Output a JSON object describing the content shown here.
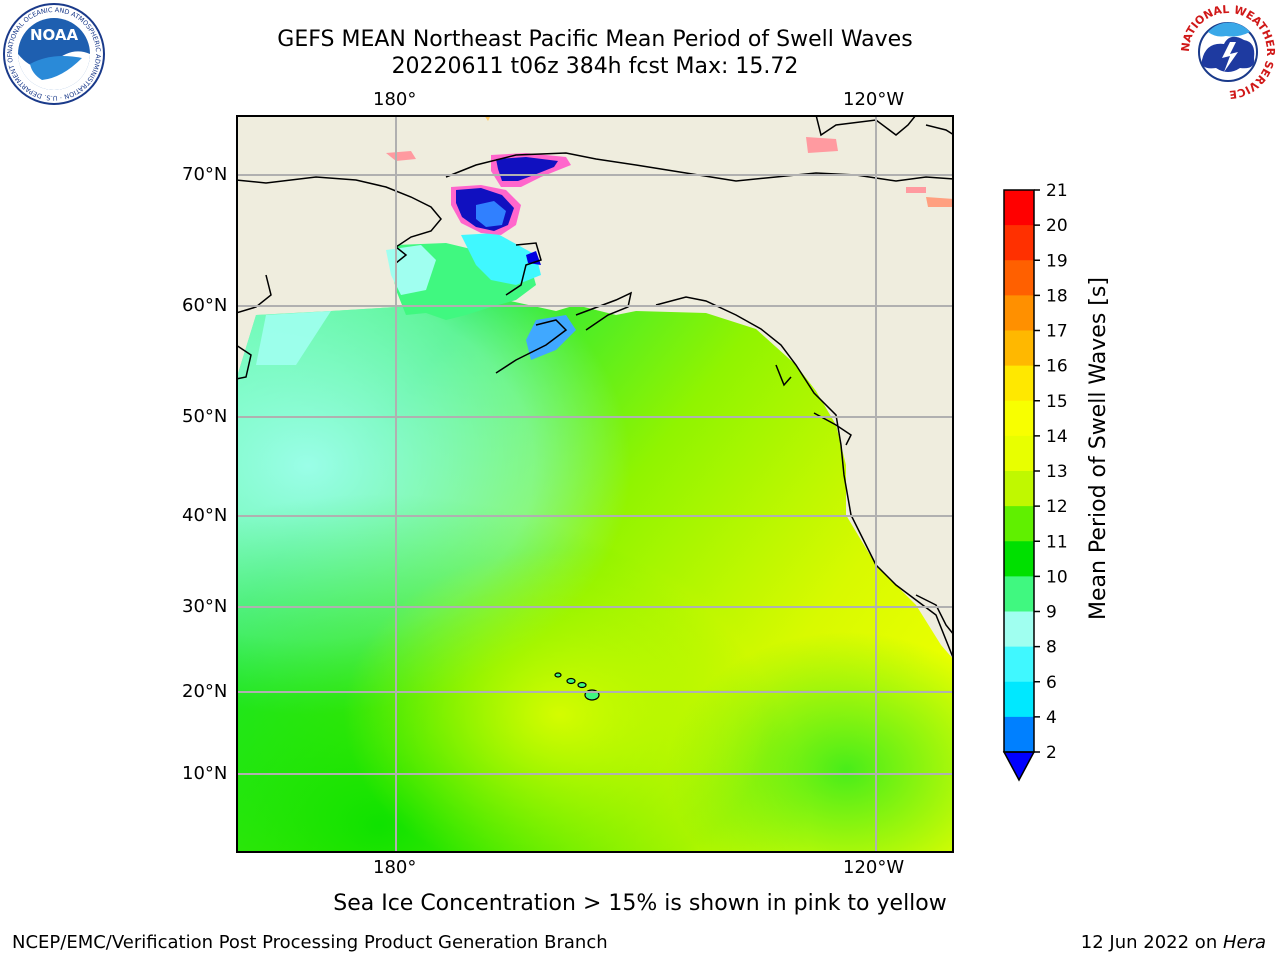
{
  "title": {
    "line1": "GEFS MEAN Northeast Pacific Mean Period of Swell Waves",
    "line2": "20220611 t06z 384h fcst   Max: 15.72"
  },
  "map": {
    "lon_labels": [
      "180°",
      "120°W"
    ],
    "lat_labels": [
      "70°N",
      "60°N",
      "50°N",
      "40°N",
      "30°N",
      "20°N",
      "10°N"
    ],
    "colors": {
      "land": "#efedde",
      "grid": "#b0b0b0",
      "coast": "#000000"
    }
  },
  "colorbar": {
    "title": "Mean Period of Swell Waves [s]",
    "ticks": [
      "2",
      "4",
      "6",
      "8",
      "9",
      "10",
      "11",
      "12",
      "13",
      "14",
      "15",
      "16",
      "17",
      "18",
      "19",
      "20",
      "21"
    ],
    "colors": [
      "#0000e0",
      "#0080ff",
      "#00e8ff",
      "#40f8ff",
      "#a0fff0",
      "#40f880",
      "#00e000",
      "#60f000",
      "#c0f800",
      "#e8ff00",
      "#f8ff00",
      "#ffe800",
      "#ffb800",
      "#ff9000",
      "#ff6000",
      "#ff3000",
      "#ff0000"
    ],
    "extend_color": "#0000ff"
  },
  "caption": "Sea Ice Concentration > 15% is shown in pink to yellow",
  "footer": {
    "credit": "NCEP/EMC/Verification Post Processing Product Generation Branch",
    "date_prefix": "12 Jun 2022 on ",
    "date_host": "Hera"
  },
  "logos": {
    "left": "NOAA",
    "left_ring": "NATIONAL OCEANIC AND ATMOSPHERIC ADMINISTRATION · U.S. DEPARTMENT OF COMMERCE",
    "right_ring": "NATIONAL WEATHER SERVICE"
  }
}
